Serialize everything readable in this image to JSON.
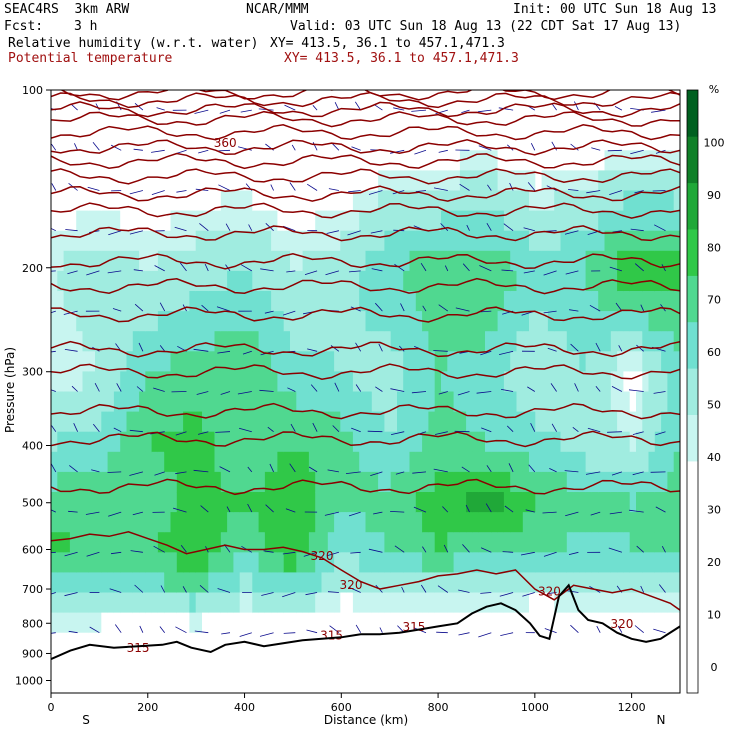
{
  "header": {
    "model": "SEAC4RS  3km ARW",
    "org": "NCAR/MMM",
    "init": "Init: 00 UTC Sun 18 Aug 13",
    "fcst_label": "Fcst:",
    "fcst_value": "3 h",
    "valid": "Valid: 03 UTC Sun 18 Aug 13 (22 CDT Sat 17 Aug 13)",
    "field1": "Relative humidity (w.r.t. water)",
    "field1_xy": "XY= 413.5, 36.1 to 457.1,471.3",
    "field2": "Potential temperature",
    "field2_xy": "XY= 413.5, 36.1 to 457.1,471.3"
  },
  "colors": {
    "theta_contour": "#8b0000",
    "terrain": "#000000",
    "wind_vectors": "#0a0a8c",
    "rh_bins": [
      "#ffffff",
      "#ffffff",
      "#ffffff",
      "#ffffff",
      "#ffffff",
      "#c8f5f0",
      "#a0ece0",
      "#70e0d0",
      "#50d890",
      "#30c848",
      "#20a838",
      "#108028",
      "#006020"
    ]
  },
  "chart_data": {
    "type": "heatmap",
    "title": "Relative humidity (w.r.t. water)",
    "overlay": "Potential temperature",
    "xlabel": "Distance (km)",
    "ylabel": "Pressure (hPa)",
    "xlim": [
      0,
      1300
    ],
    "ylim": [
      1050,
      100
    ],
    "x_ticks": [
      0,
      200,
      400,
      600,
      800,
      1000,
      1200
    ],
    "y_ticks": [
      100,
      200,
      300,
      400,
      500,
      600,
      700,
      800,
      900,
      1000
    ],
    "y_scale": "log",
    "x_end_labels": {
      "left": "S",
      "right": "N"
    },
    "colorbar": {
      "unit": "%",
      "ticks": [
        0,
        10,
        20,
        30,
        40,
        50,
        60,
        70,
        80,
        90,
        100
      ],
      "bins": [
        -5,
        5,
        15,
        25,
        30,
        35,
        40,
        50,
        60,
        70,
        80,
        90,
        100,
        110
      ]
    },
    "theta_labels": [
      {
        "value": "360",
        "x": 360,
        "p": 125
      },
      {
        "value": "320",
        "x": 560,
        "p": 625
      },
      {
        "value": "320",
        "x": 620,
        "p": 700
      },
      {
        "value": "320",
        "x": 1030,
        "p": 718
      },
      {
        "value": "320",
        "x": 1180,
        "p": 815
      },
      {
        "value": "315",
        "x": 580,
        "p": 853
      },
      {
        "value": "315",
        "x": 750,
        "p": 825
      },
      {
        "value": "315",
        "x": 180,
        "p": 895
      }
    ],
    "theta_levels_p": [
      470,
      390,
      350,
      300,
      275,
      240,
      215,
      195,
      175,
      160,
      150,
      140,
      132,
      125,
      118,
      112,
      108,
      104,
      101
    ],
    "terrain": {
      "x": [
        0,
        40,
        80,
        130,
        180,
        230,
        260,
        290,
        330,
        360,
        400,
        440,
        480,
        520,
        560,
        600,
        640,
        680,
        720,
        760,
        800,
        840,
        870,
        900,
        930,
        960,
        990,
        1010,
        1030,
        1050,
        1070,
        1090,
        1110,
        1140,
        1170,
        1200,
        1230,
        1260,
        1300
      ],
      "p": [
        920,
        890,
        870,
        880,
        875,
        870,
        860,
        880,
        895,
        870,
        860,
        875,
        865,
        855,
        850,
        845,
        835,
        835,
        830,
        820,
        810,
        800,
        770,
        750,
        740,
        760,
        800,
        840,
        850,
        720,
        690,
        760,
        790,
        800,
        830,
        850,
        860,
        850,
        810
      ]
    },
    "level_600_contour": {
      "x": [
        0,
        40,
        80,
        120,
        160,
        200,
        240,
        280,
        320,
        360,
        400,
        440,
        480,
        520,
        560,
        600,
        640,
        680,
        720,
        760,
        800,
        840,
        880,
        920,
        960,
        1000,
        1040,
        1080,
        1120,
        1160,
        1200,
        1240,
        1280,
        1300
      ],
      "p": [
        580,
        575,
        565,
        570,
        560,
        575,
        590,
        610,
        600,
        590,
        600,
        600,
        595,
        605,
        620,
        650,
        680,
        700,
        690,
        680,
        665,
        660,
        650,
        660,
        650,
        700,
        730,
        690,
        700,
        710,
        700,
        720,
        740,
        760
      ]
    },
    "rh_field": {
      "columns_x": [
        0,
        100,
        200,
        300,
        400,
        500,
        600,
        700,
        800,
        900,
        1000,
        1100,
        1200,
        1300
      ],
      "levels_p": [
        100,
        200,
        300,
        400,
        500,
        600,
        700,
        800,
        900
      ],
      "values": [
        [
          20,
          20,
          20,
          20,
          20,
          20,
          20,
          20,
          20,
          20,
          20,
          20,
          20,
          20
        ],
        [
          40,
          45,
          40,
          45,
          50,
          40,
          45,
          60,
          65,
          70,
          55,
          60,
          80,
          75
        ],
        [
          35,
          40,
          60,
          65,
          70,
          55,
          50,
          45,
          60,
          55,
          40,
          50,
          30,
          55
        ],
        [
          50,
          55,
          70,
          75,
          60,
          70,
          65,
          50,
          65,
          60,
          55,
          45,
          40,
          60
        ],
        [
          65,
          70,
          60,
          75,
          70,
          80,
          60,
          65,
          75,
          85,
          70,
          65,
          60,
          65
        ],
        [
          75,
          65,
          70,
          80,
          60,
          80,
          50,
          60,
          70,
          60,
          65,
          55,
          60,
          60
        ],
        [
          55,
          50,
          55,
          60,
          45,
          55,
          40,
          45,
          45,
          45,
          40,
          40,
          40,
          40
        ],
        [
          35,
          35,
          30,
          35,
          30,
          30,
          25,
          25,
          20,
          30,
          25,
          30,
          30,
          35
        ],
        [
          20,
          20,
          20,
          20,
          20,
          20,
          20,
          20,
          20,
          20,
          20,
          20,
          20,
          20
        ]
      ]
    }
  }
}
